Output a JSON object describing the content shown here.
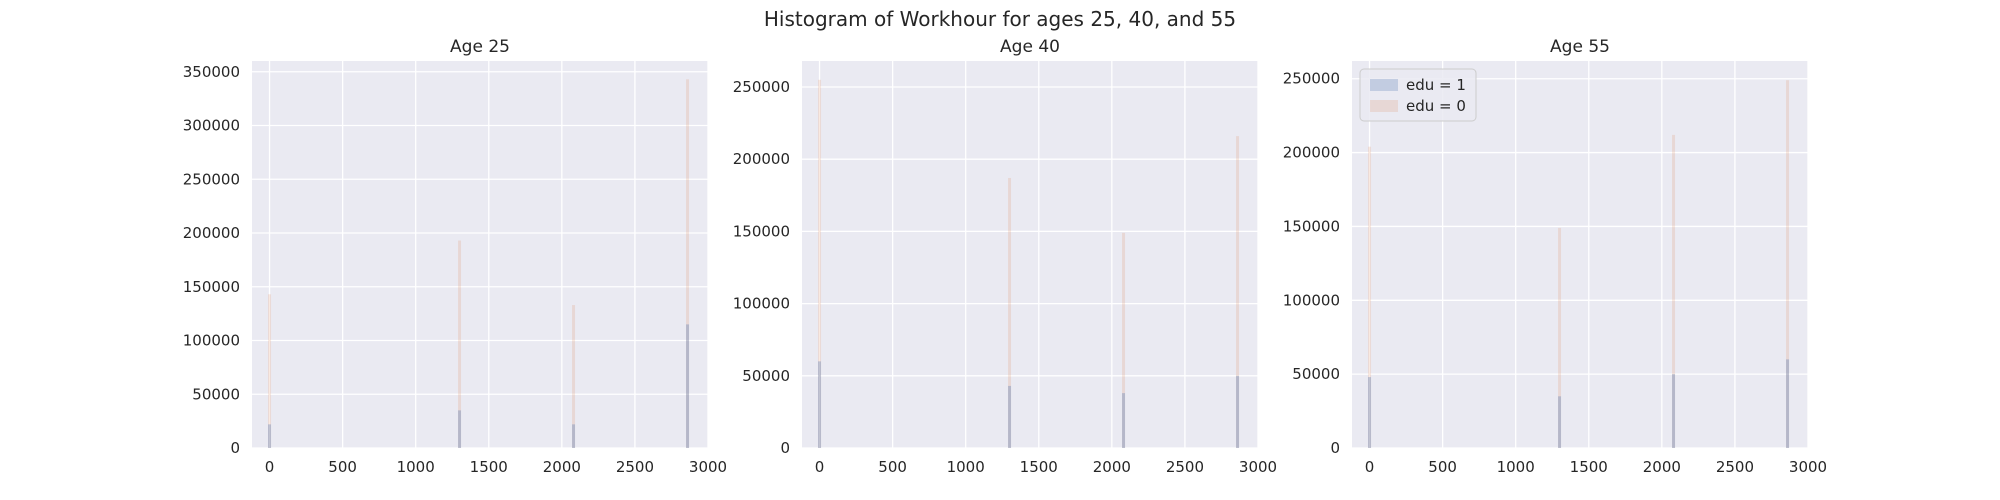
{
  "figure": {
    "title": "Histogram of Workhour for ages 25, 40, and 55",
    "background": "#ffffff",
    "axes_facecolor": "#EAEAF2",
    "grid_color": "#ffffff"
  },
  "chart_data": [
    {
      "type": "bar",
      "title": "Age 25",
      "xlabel": "",
      "ylabel": "",
      "xlim": [
        -120,
        3000
      ],
      "ylim": [
        0,
        360000
      ],
      "xticks": [
        0,
        500,
        1000,
        1500,
        2000,
        2500,
        3000
      ],
      "yticks": [
        0,
        50000,
        100000,
        150000,
        200000,
        250000,
        300000,
        350000
      ],
      "ytick_labels": [
        "0",
        "50000",
        "100000",
        "150000",
        "200000",
        "250000",
        "300000",
        "350000"
      ],
      "grid": true,
      "legend": null,
      "x": [
        0,
        1300,
        2080,
        2860
      ],
      "series": [
        {
          "name": "edu = 1",
          "color": "#4C72B0",
          "values": [
            22000,
            35000,
            22000,
            115000
          ]
        },
        {
          "name": "edu = 0",
          "color": "#DD8452",
          "values": [
            143000,
            193000,
            133000,
            343000
          ]
        }
      ]
    },
    {
      "type": "bar",
      "title": "Age 40",
      "xlabel": "",
      "ylabel": "",
      "xlim": [
        -120,
        3000
      ],
      "ylim": [
        0,
        268000
      ],
      "xticks": [
        0,
        500,
        1000,
        1500,
        2000,
        2500,
        3000
      ],
      "yticks": [
        0,
        50000,
        100000,
        150000,
        200000,
        250000
      ],
      "ytick_labels": [
        "0",
        "50000",
        "100000",
        "150000",
        "200000",
        "250000"
      ],
      "grid": true,
      "legend": null,
      "x": [
        0,
        1300,
        2080,
        2860
      ],
      "series": [
        {
          "name": "edu = 1",
          "color": "#4C72B0",
          "values": [
            60000,
            43000,
            38000,
            50000
          ]
        },
        {
          "name": "edu = 0",
          "color": "#DD8452",
          "values": [
            255000,
            187000,
            149000,
            216000
          ]
        }
      ]
    },
    {
      "type": "bar",
      "title": "Age 55",
      "xlabel": "",
      "ylabel": "",
      "xlim": [
        -120,
        3000
      ],
      "ylim": [
        0,
        262000
      ],
      "xticks": [
        0,
        500,
        1000,
        1500,
        2000,
        2500,
        3000
      ],
      "yticks": [
        0,
        50000,
        100000,
        150000,
        200000,
        250000
      ],
      "ytick_labels": [
        "0",
        "50000",
        "100000",
        "150000",
        "200000",
        "250000"
      ],
      "grid": true,
      "legend": "upper-left",
      "x": [
        0,
        1300,
        2080,
        2860
      ],
      "series": [
        {
          "name": "edu = 1",
          "color": "#4C72B0",
          "values": [
            48000,
            35000,
            50000,
            60000
          ]
        },
        {
          "name": "edu = 0",
          "color": "#DD8452",
          "values": [
            204000,
            149000,
            212000,
            249000
          ]
        }
      ]
    }
  ]
}
